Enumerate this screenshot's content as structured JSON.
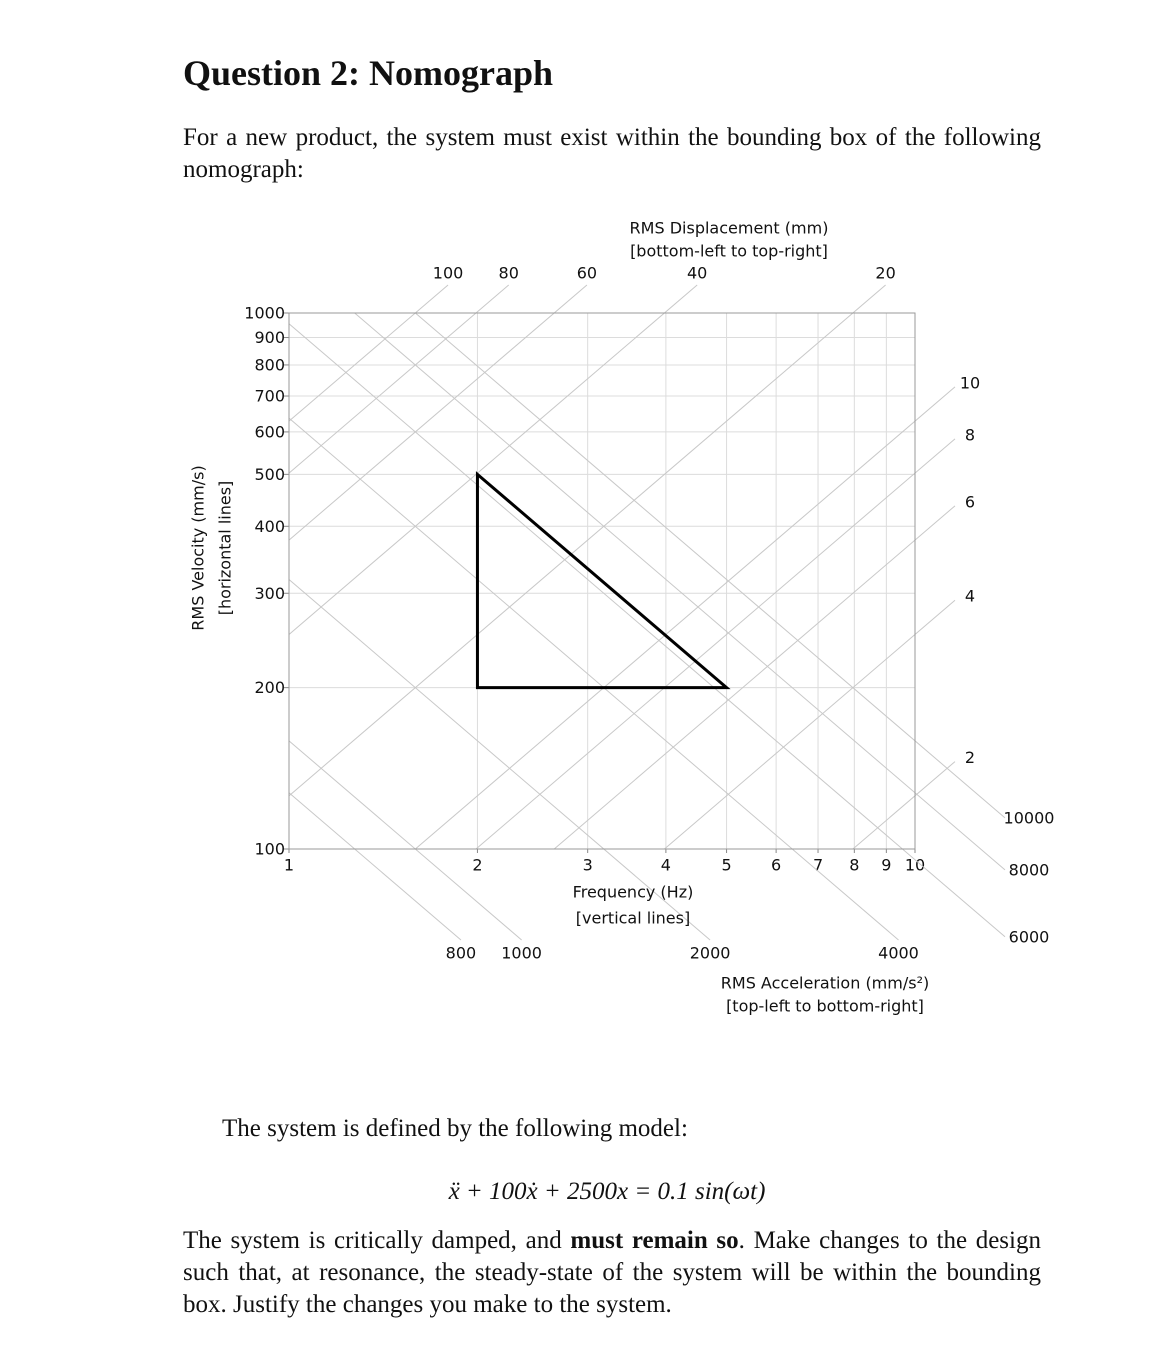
{
  "title": "Question 2: Nomograph",
  "intro": "For a new product, the system must exist within the bounding box of the following nomograph:",
  "chart_data": {
    "type": "nomograph",
    "xlabel": [
      "Frequency (Hz)",
      "[vertical lines]"
    ],
    "ylabel": [
      "RMS Velocity (mm/s)",
      "[horizontal lines]"
    ],
    "xscale": "log",
    "yscale": "log",
    "xlim": [
      1,
      10
    ],
    "xticks": [
      1,
      2,
      3,
      4,
      5,
      6,
      7,
      8,
      9,
      10
    ],
    "ylim": [
      100,
      1000
    ],
    "yticks": [
      100,
      200,
      300,
      400,
      500,
      600,
      700,
      800,
      900,
      1000
    ],
    "grid": true,
    "displacement": {
      "label": [
        "RMS Displacement (mm)",
        "[bottom-left to top-right]"
      ],
      "values": [
        2,
        4,
        6,
        8,
        10,
        20,
        40,
        60,
        80,
        100
      ]
    },
    "acceleration": {
      "label": [
        "RMS Acceleration (mm/s²)",
        "[top-left to bottom-right]"
      ],
      "values": [
        800,
        1000,
        2000,
        4000,
        6000,
        8000,
        10000
      ]
    },
    "bounding_box": {
      "x": [
        2,
        2,
        5
      ],
      "y": [
        500,
        200,
        200
      ],
      "color": "#000000"
    }
  },
  "model_intro": "The system is defined by the following model:",
  "equation": "ẍ + 100ẋ + 2500x = 0.1 sin(ωt)",
  "closing": {
    "before": "The system is critically damped, and ",
    "emphasis": "must remain so",
    "after": ". Make changes to the design such that, at resonance, the steady-state of the system will be within the bounding box. Justify the changes you make to the system."
  }
}
